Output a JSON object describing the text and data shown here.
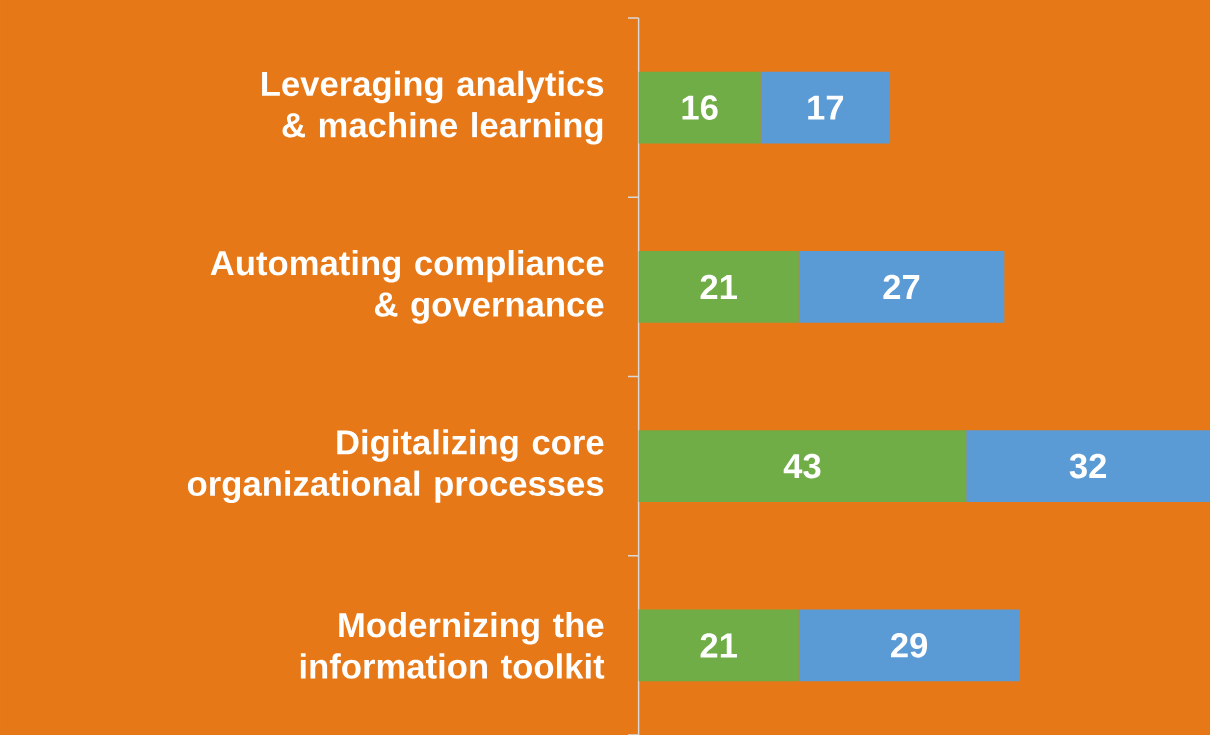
{
  "chart_data": {
    "type": "bar",
    "orientation": "horizontal",
    "stacked": true,
    "data_labels": true,
    "categories": [
      "Leveraging analytics & machine learning",
      "Automating compliance & governance",
      "Digitalizing core organizational processes",
      "Modernizing the information toolkit"
    ],
    "series": [
      {
        "color": "#70ad47",
        "values": [
          16,
          21,
          43,
          21
        ]
      },
      {
        "color": "#5b9bd5",
        "values": [
          17,
          27,
          32,
          29
        ]
      }
    ]
  }
}
